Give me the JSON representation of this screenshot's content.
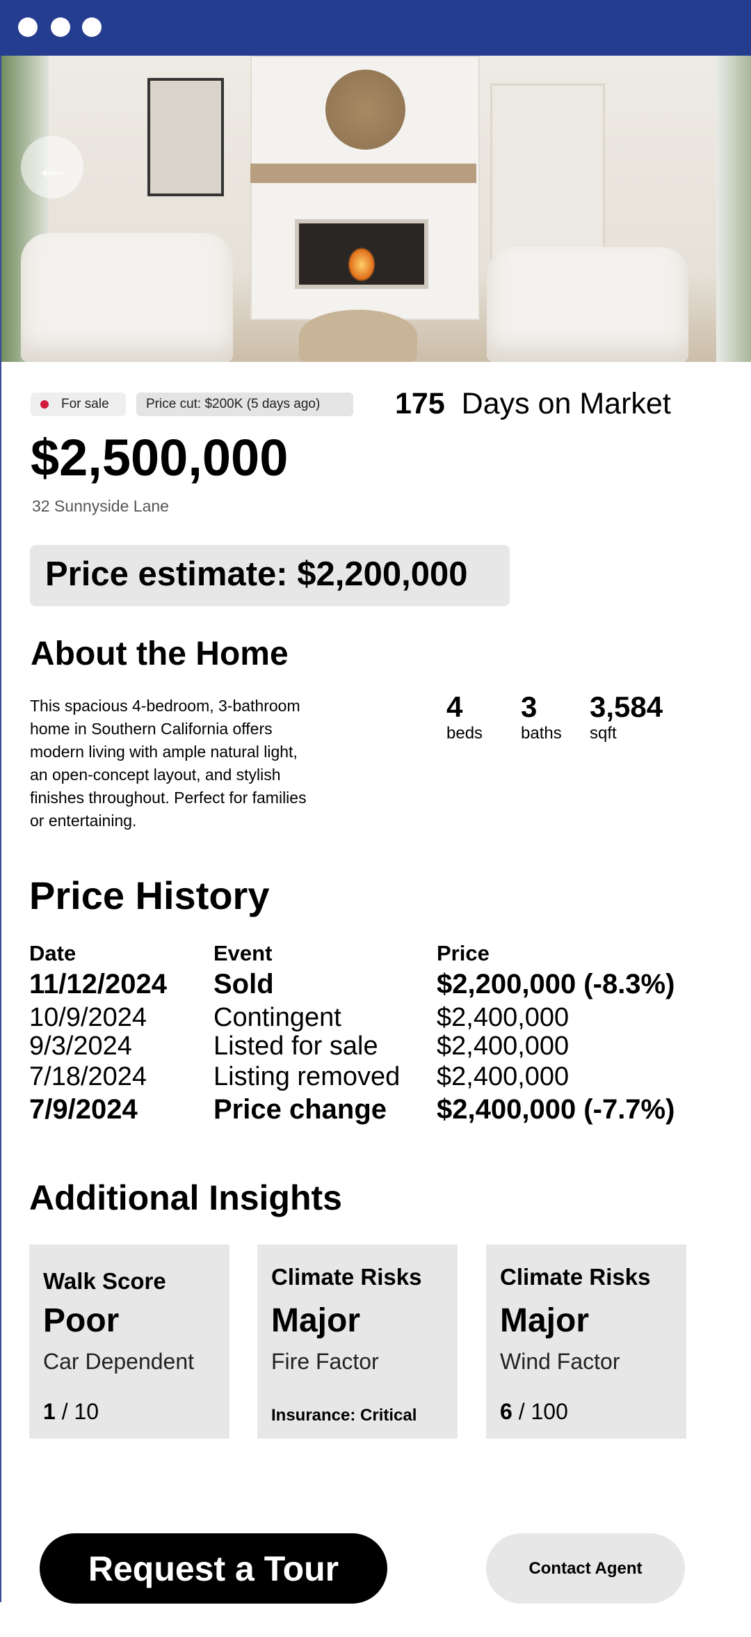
{
  "window": {
    "controls": [
      "close",
      "minimize",
      "maximize"
    ],
    "bar_color": "#253d8f"
  },
  "hero": {
    "image": "living room with fireplace",
    "back_icon": "arrow-left-icon"
  },
  "listing": {
    "status": "For sale",
    "status_color": "#d11a3c",
    "price_cut": "Price cut: $200K (5 days ago)",
    "days_on_market": "175",
    "days_label": "Days on Market",
    "price": "$2,500,000",
    "address": "32 Sunnyside Lane",
    "estimate": "Price estimate: $2,200,000"
  },
  "about": {
    "title": "About the Home",
    "description_lines": [
      "This spacious 4-bedroom, 3-bathroom",
      "home in Southern California offers",
      "modern living with ample natural light,",
      "an open-concept layout, and stylish",
      "finishes throughout. Perfect for families",
      "or entertaining."
    ],
    "stats": [
      {
        "value": "4",
        "label": "beds"
      },
      {
        "value": "3",
        "label": "baths"
      },
      {
        "value": "3,584",
        "label": "sqft"
      }
    ]
  },
  "price_history": {
    "title": "Price History",
    "headers": [
      "Date",
      "Event",
      "Price"
    ],
    "rows": [
      {
        "date": "11/12/2024",
        "event": "Sold",
        "price": "$2,200,000 (-8.3%)",
        "bold": true
      },
      {
        "date": "10/9/2024",
        "event": "Contingent",
        "price": "$2,400,000",
        "bold": false
      },
      {
        "date": "9/3/2024",
        "event": "Listed for sale",
        "price": "$2,400,000",
        "bold": false
      },
      {
        "date": "7/18/2024",
        "event": "Listing removed",
        "price": "$2,400,000",
        "bold": false
      },
      {
        "date": "7/9/2024",
        "event": "Price change",
        "price": "$2,400,000 (-7.7%)",
        "bold": true
      }
    ]
  },
  "insights": {
    "title": "Additional Insights",
    "cards": [
      {
        "title": "Walk Score",
        "value": "Poor",
        "sub": "Car Dependent",
        "foot_bold": "1",
        "foot_rest": " / 10"
      },
      {
        "title": "Climate Risks",
        "value": "Major",
        "sub": "Fire Factor",
        "foot_bold": "Insurance: Critical",
        "foot_rest": ""
      },
      {
        "title": "Climate Risks",
        "value": "Major",
        "sub": "Wind Factor",
        "foot_bold": "6",
        "foot_rest": " / 100"
      }
    ]
  },
  "actions": {
    "primary": "Request a Tour",
    "secondary": "Contact Agent"
  }
}
